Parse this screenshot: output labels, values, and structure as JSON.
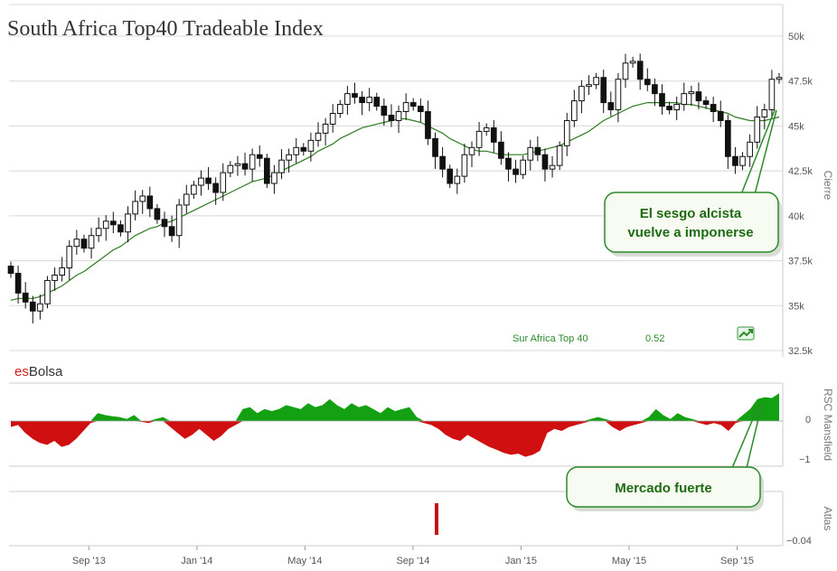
{
  "title": "South Africa Top40 Tradeable Index",
  "brand": {
    "prefix": "es",
    "suffix": "Bolsa",
    "prefix_color": "#d02020",
    "suffix_color": "#333333"
  },
  "colors": {
    "candle_body": "#111111",
    "sma_line": "#2e7d1f",
    "rsc_positive": "#13a013",
    "rsc_negative": "#d01010",
    "atlas_bar": "#c81010",
    "grid": "#d8d8d8",
    "callout_fill": "#f8fbf2",
    "callout_border": "#2a8a2a"
  },
  "indicator": {
    "name": "Sur Africa Top 40",
    "value": "0.52",
    "icon": "trend-up-icon"
  },
  "callouts": {
    "bias_line1": "El sesgo alcista",
    "bias_line2": "vuelve a imponerse",
    "market": "Mercado fuerte"
  },
  "chart_data": [
    {
      "type": "candlestick",
      "panel": "price",
      "title": "South Africa Top40 Tradeable Index",
      "ylabel": "Cierre",
      "ylim": [
        32500,
        51000
      ],
      "yticks": [
        32500,
        35000,
        37500,
        40000,
        42500,
        45000,
        47500,
        50000
      ],
      "ytick_labels": [
        "32.5k",
        "35k",
        "37.5k",
        "40k",
        "42.5k",
        "45k",
        "47.5k",
        "50k"
      ],
      "x_tick_labels": [
        "Sep '13",
        "Jan '14",
        "May '14",
        "Sep '14",
        "Jan '15",
        "May '15",
        "Sep '15"
      ],
      "x_tick_positions": [
        13,
        31,
        49,
        67,
        85,
        103,
        121
      ],
      "grid": true,
      "closes": [
        36800,
        35700,
        35200,
        34700,
        35100,
        36400,
        36700,
        37100,
        38300,
        38700,
        38200,
        38900,
        39300,
        39700,
        39500,
        39100,
        40100,
        40800,
        41100,
        40400,
        39800,
        39400,
        38900,
        40600,
        41200,
        41700,
        42100,
        41800,
        41300,
        42400,
        42800,
        42900,
        42600,
        43400,
        43200,
        41800,
        42400,
        43100,
        43400,
        43800,
        43600,
        44200,
        44600,
        45100,
        45700,
        46200,
        46800,
        46600,
        46300,
        46600,
        46100,
        45600,
        45300,
        45800,
        46300,
        46100,
        45800,
        44300,
        43300,
        42600,
        41800,
        42200,
        43400,
        43800,
        44700,
        44900,
        44100,
        43200,
        42600,
        42300,
        43100,
        43800,
        43400,
        42600,
        42800,
        43900,
        45300,
        46400,
        47200,
        47300,
        47700,
        46300,
        45900,
        47600,
        48500,
        48600,
        47600,
        47300,
        46800,
        46100,
        45900,
        46200,
        46800,
        46900,
        46400,
        46200,
        45800,
        45300,
        43300,
        42800,
        43300,
        44100,
        45500,
        45900,
        47600,
        47700
      ],
      "sma": [
        35300,
        35400,
        35400,
        35400,
        35500,
        35700,
        35900,
        36100,
        36400,
        36700,
        36900,
        37200,
        37500,
        37800,
        38100,
        38300,
        38600,
        38900,
        39100,
        39300,
        39400,
        39600,
        39700,
        39900,
        40100,
        40300,
        40500,
        40700,
        40900,
        41100,
        41300,
        41500,
        41700,
        41900,
        42000,
        42100,
        42300,
        42500,
        42700,
        42900,
        43100,
        43300,
        43600,
        43800,
        44000,
        44300,
        44500,
        44700,
        44900,
        45000,
        45100,
        45200,
        45300,
        45400,
        45400,
        45300,
        45200,
        45000,
        44800,
        44600,
        44300,
        44100,
        43900,
        43700,
        43600,
        43600,
        43500,
        43400,
        43400,
        43400,
        43400,
        43500,
        43600,
        43700,
        43800,
        43900,
        44100,
        44300,
        44500,
        44700,
        45000,
        45300,
        45500,
        45700,
        45900,
        46100,
        46200,
        46300,
        46300,
        46300,
        46300,
        46300,
        46200,
        46200,
        46100,
        46000,
        45900,
        45800,
        45700,
        45500,
        45400,
        45300,
        45300,
        45300,
        45400,
        45500
      ],
      "sma_x_start_label": "Sep '13"
    },
    {
      "type": "area",
      "panel": "rsc",
      "ylabel": "RSC Mansfield",
      "yticks": [
        0,
        -1
      ],
      "ytick_labels": [
        "0",
        "−1"
      ],
      "ylim": [
        -1.15,
        0.75
      ],
      "values": [
        -0.15,
        -0.1,
        -0.3,
        -0.45,
        -0.55,
        -0.6,
        -0.5,
        -0.65,
        -0.6,
        -0.45,
        -0.25,
        -0.05,
        0.2,
        0.15,
        0.12,
        0.1,
        0.05,
        0.15,
        -0.02,
        -0.05,
        0.05,
        0.1,
        -0.15,
        -0.3,
        -0.45,
        -0.35,
        -0.2,
        -0.35,
        -0.5,
        -0.38,
        -0.2,
        -0.1,
        0.3,
        0.35,
        0.2,
        0.3,
        0.25,
        0.3,
        0.4,
        0.35,
        0.3,
        0.45,
        0.35,
        0.4,
        0.55,
        0.4,
        0.3,
        0.45,
        0.35,
        0.4,
        0.3,
        0.2,
        0.35,
        0.25,
        0.3,
        0.35,
        0.1,
        -0.05,
        -0.1,
        -0.2,
        -0.35,
        -0.45,
        -0.5,
        -0.35,
        -0.45,
        -0.55,
        -0.65,
        -0.72,
        -0.8,
        -0.85,
        -0.82,
        -0.9,
        -0.85,
        -0.75,
        -0.3,
        -0.2,
        -0.25,
        -0.15,
        -0.1,
        -0.05,
        0.05,
        0.1,
        0.05,
        -0.15,
        -0.25,
        -0.15,
        -0.1,
        -0.05,
        0.1,
        0.3,
        0.15,
        0.05,
        0.2,
        0.1,
        0.05,
        -0.05,
        -0.1,
        -0.05,
        -0.1,
        -0.25,
        -0.05,
        0.15,
        0.3,
        0.55,
        0.6,
        0.58,
        0.7
      ]
    },
    {
      "type": "bar",
      "panel": "atlas",
      "ylabel": "Atlas",
      "ytick_labels": [
        "−0.04"
      ],
      "bars": [
        {
          "index": 71,
          "value": -0.04
        }
      ]
    }
  ]
}
